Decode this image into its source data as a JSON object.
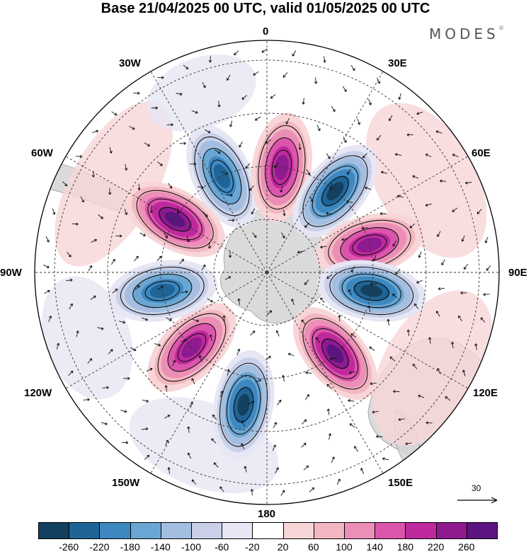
{
  "header": {
    "title": "Base 21/04/2025 00 UTC, valid 01/05/2025 00 UTC",
    "brand": "MODES"
  },
  "longitude_labels": {
    "lon_0": "0",
    "lon_30e": "30E",
    "lon_60e": "60E",
    "lon_90e": "90E",
    "lon_120e": "120E",
    "lon_150e": "150E",
    "lon_180": "180",
    "lon_150w": "150W",
    "lon_120w": "120W",
    "lon_90w": "90W",
    "lon_60w": "60W",
    "lon_30w": "30W"
  },
  "projection": "south polar stereographic",
  "reference_vector": {
    "value": "30"
  },
  "colorbar": {
    "ticks": [
      "-260",
      "-220",
      "-180",
      "-140",
      "-100",
      "-60",
      "-20",
      "20",
      "60",
      "100",
      "140",
      "180",
      "220",
      "260"
    ],
    "colors": [
      "#13405e",
      "#1f6496",
      "#3d88c0",
      "#6aa6d3",
      "#a3bee0",
      "#c9d0e8",
      "#e6e6f4",
      "#ffffff",
      "#f8d6d8",
      "#f3b7c2",
      "#ec8fb7",
      "#dc55ac",
      "#be2a9d",
      "#8e1a8f",
      "#5b1480"
    ]
  },
  "anomaly_centers": [
    {
      "sign": "negative",
      "level": -220,
      "bearing": 335
    },
    {
      "sign": "positive",
      "level": 220,
      "bearing": 8
    },
    {
      "sign": "negative",
      "level": -260,
      "bearing": 40
    },
    {
      "sign": "positive",
      "level": 220,
      "bearing": 75
    },
    {
      "sign": "negative",
      "level": -260,
      "bearing": 100
    },
    {
      "sign": "positive",
      "level": 260,
      "bearing": 140
    },
    {
      "sign": "negative",
      "level": -260,
      "bearing": 190
    },
    {
      "sign": "positive",
      "level": 220,
      "bearing": 225
    },
    {
      "sign": "negative",
      "level": -220,
      "bearing": 260
    },
    {
      "sign": "positive",
      "level": 260,
      "bearing": 300
    }
  ],
  "colors": {
    "graticule": "#333333",
    "land": "#d4d4d4",
    "coastline": "#888888"
  }
}
